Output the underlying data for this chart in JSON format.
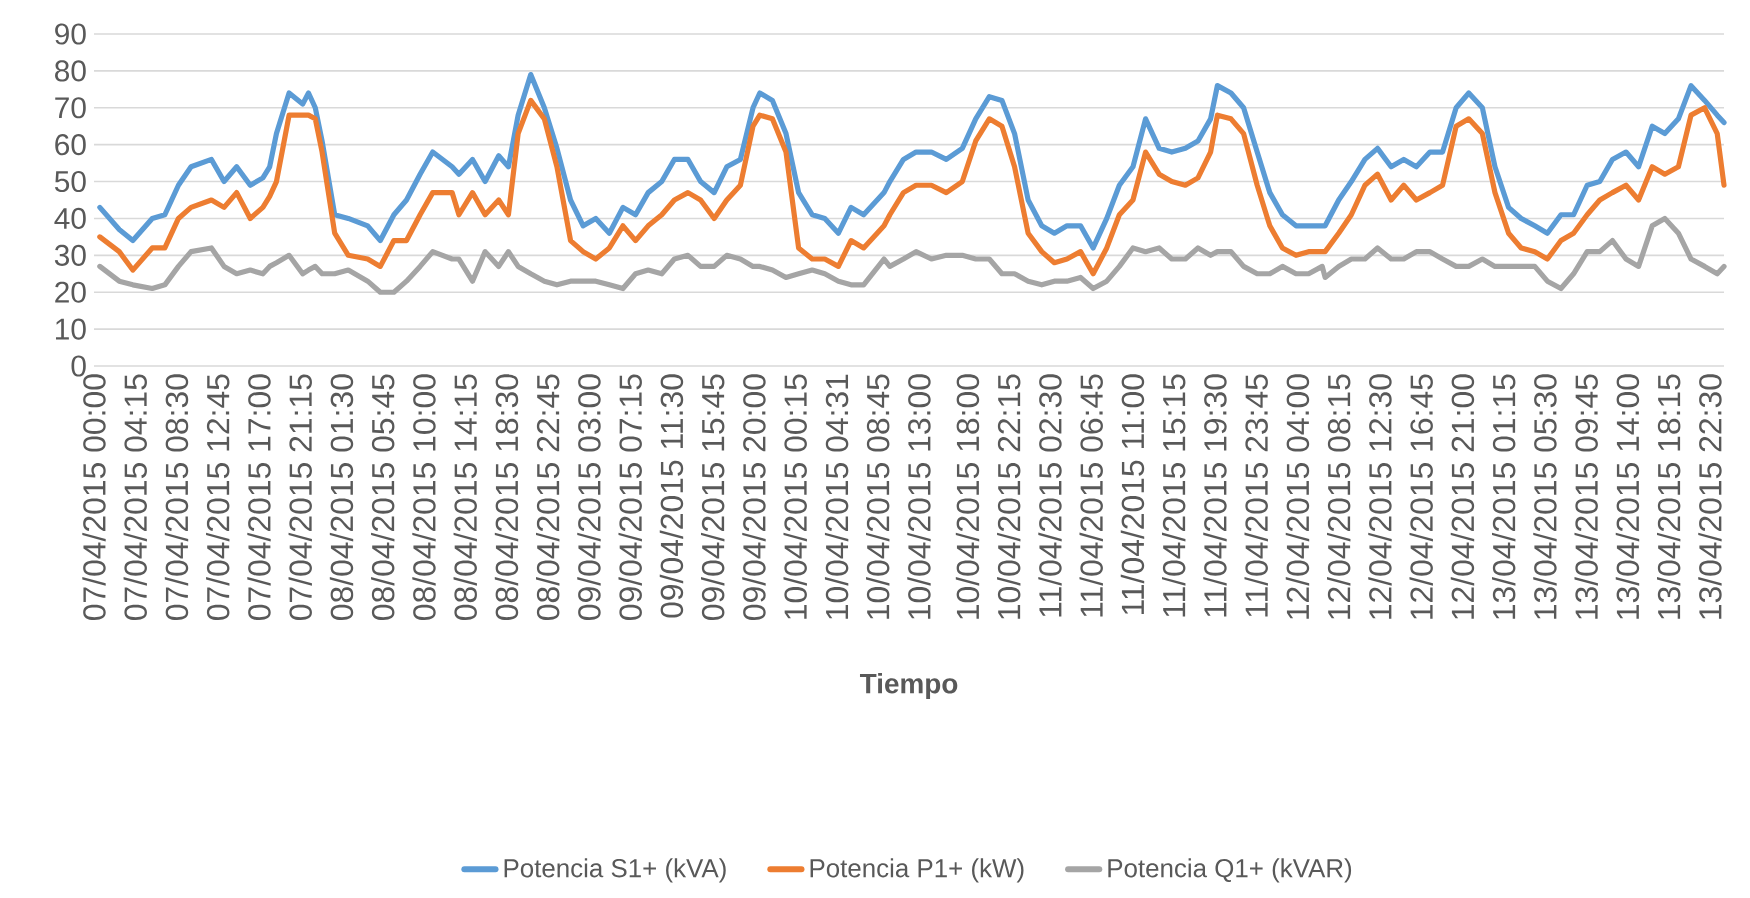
{
  "chart_data": {
    "type": "line",
    "xlabel": "Tiempo",
    "xlim": [
      "2015-04-07T00:00",
      "2015-04-13T23:57"
    ],
    "ylim": [
      0,
      90
    ],
    "yticks": [
      0,
      10,
      20,
      30,
      40,
      50,
      60,
      70,
      80,
      90
    ],
    "xticks": [
      {
        "value": "2015-04-07T00:00",
        "label": "07/04/2015 00:00"
      },
      {
        "value": "2015-04-07T04:15",
        "label": "07/04/2015 04:15"
      },
      {
        "value": "2015-04-07T08:30",
        "label": "07/04/2015 08:30"
      },
      {
        "value": "2015-04-07T12:45",
        "label": "07/04/2015 12:45"
      },
      {
        "value": "2015-04-07T17:00",
        "label": "07/04/2015 17:00"
      },
      {
        "value": "2015-04-07T21:15",
        "label": "07/04/2015 21:15"
      },
      {
        "value": "2015-04-08T01:30",
        "label": "08/04/2015 01:30"
      },
      {
        "value": "2015-04-08T05:45",
        "label": "08/04/2015 05:45"
      },
      {
        "value": "2015-04-08T10:00",
        "label": "08/04/2015 10:00"
      },
      {
        "value": "2015-04-08T14:15",
        "label": "08/04/2015 14:15"
      },
      {
        "value": "2015-04-08T18:30",
        "label": "08/04/2015 18:30"
      },
      {
        "value": "2015-04-08T22:45",
        "label": "08/04/2015 22:45"
      },
      {
        "value": "2015-04-09T03:00",
        "label": "09/04/2015 03:00"
      },
      {
        "value": "2015-04-09T07:15",
        "label": "09/04/2015 07:15"
      },
      {
        "value": "2015-04-09T11:30",
        "label": "09/04/2015 11:30"
      },
      {
        "value": "2015-04-09T15:45",
        "label": "09/04/2015 15:45"
      },
      {
        "value": "2015-04-09T20:00",
        "label": "09/04/2015 20:00"
      },
      {
        "value": "2015-04-10T00:15",
        "label": "10/04/2015 00:15"
      },
      {
        "value": "2015-04-10T04:31",
        "label": "10/04/2015 04:31"
      },
      {
        "value": "2015-04-10T08:45",
        "label": "10/04/2015 08:45"
      },
      {
        "value": "2015-04-10T13:00",
        "label": "10/04/2015 13:00"
      },
      {
        "value": "2015-04-10T18:00",
        "label": "10/04/2015 18:00"
      },
      {
        "value": "2015-04-10T22:15",
        "label": "10/04/2015 22:15"
      },
      {
        "value": "2015-04-11T02:30",
        "label": "11/04/2015 02:30"
      },
      {
        "value": "2015-04-11T06:45",
        "label": "11/04/2015 06:45"
      },
      {
        "value": "2015-04-11T11:00",
        "label": "11/04/2015 11:00"
      },
      {
        "value": "2015-04-11T15:15",
        "label": "11/04/2015 15:15"
      },
      {
        "value": "2015-04-11T19:30",
        "label": "11/04/2015 19:30"
      },
      {
        "value": "2015-04-11T23:45",
        "label": "11/04/2015 23:45"
      },
      {
        "value": "2015-04-12T04:00",
        "label": "12/04/2015 04:00"
      },
      {
        "value": "2015-04-12T08:15",
        "label": "12/04/2015 08:15"
      },
      {
        "value": "2015-04-12T12:30",
        "label": "12/04/2015 12:30"
      },
      {
        "value": "2015-04-12T16:45",
        "label": "12/04/2015 16:45"
      },
      {
        "value": "2015-04-12T21:00",
        "label": "12/04/2015 21:00"
      },
      {
        "value": "2015-04-13T01:15",
        "label": "13/04/2015 01:15"
      },
      {
        "value": "2015-04-13T05:30",
        "label": "13/04/2015 05:30"
      },
      {
        "value": "2015-04-13T09:45",
        "label": "13/04/2015 09:45"
      },
      {
        "value": "2015-04-13T14:00",
        "label": "13/04/2015 14:00"
      },
      {
        "value": "2015-04-13T18:15",
        "label": "13/04/2015 18:15"
      },
      {
        "value": "2015-04-13T22:30",
        "label": "13/04/2015 22:30"
      }
    ],
    "x": [
      "2015-04-07T00:36",
      "2015-04-07T02:36",
      "2015-04-07T04:00",
      "2015-04-07T06:00",
      "2015-04-07T07:18",
      "2015-04-07T08:42",
      "2015-04-07T10:00",
      "2015-04-07T12:06",
      "2015-04-07T13:24",
      "2015-04-07T14:42",
      "2015-04-07T16:06",
      "2015-04-07T17:24",
      "2015-04-07T18:06",
      "2015-04-07T18:48",
      "2015-04-07T20:06",
      "2015-04-07T21:30",
      "2015-04-07T22:06",
      "2015-04-07T22:48",
      "2015-04-07T23:30",
      "2015-04-08T00:48",
      "2015-04-08T02:12",
      "2015-04-08T04:12",
      "2015-04-08T05:30",
      "2015-04-08T06:54",
      "2015-04-08T08:12",
      "2015-04-08T09:36",
      "2015-04-08T10:54",
      "2015-04-08T12:54",
      "2015-04-08T13:36",
      "2015-04-08T15:00",
      "2015-04-08T16:18",
      "2015-04-08T17:42",
      "2015-04-08T18:42",
      "2015-04-08T19:42",
      "2015-04-08T21:00",
      "2015-04-08T22:24",
      "2015-04-08T23:42",
      "2015-04-09T01:06",
      "2015-04-09T02:24",
      "2015-04-09T03:42",
      "2015-04-09T05:06",
      "2015-04-09T06:30",
      "2015-04-09T07:48",
      "2015-04-09T09:06",
      "2015-04-09T10:30",
      "2015-04-09T11:48",
      "2015-04-09T13:12",
      "2015-04-09T14:30",
      "2015-04-09T15:54",
      "2015-04-09T17:12",
      "2015-04-09T18:36",
      "2015-04-09T19:54",
      "2015-04-09T20:36",
      "2015-04-09T21:54",
      "2015-04-09T23:18",
      "2015-04-10T00:36",
      "2015-04-10T02:00",
      "2015-04-10T03:18",
      "2015-04-10T04:42",
      "2015-04-10T06:00",
      "2015-04-10T07:18",
      "2015-04-10T09:24",
      "2015-04-10T10:00",
      "2015-04-10T11:24",
      "2015-04-10T12:42",
      "2015-04-10T14:17",
      "2015-04-10T15:49",
      "2015-04-10T17:28",
      "2015-04-10T18:51",
      "2015-04-10T20:15",
      "2015-04-10T21:33",
      "2015-04-10T22:51",
      "2015-04-11T00:15",
      "2015-04-11T01:39",
      "2015-04-11T02:57",
      "2015-04-11T04:15",
      "2015-04-11T05:39",
      "2015-04-11T06:57",
      "2015-04-11T08:21",
      "2015-04-11T09:39",
      "2015-04-11T11:03",
      "2015-04-11T12:21",
      "2015-04-11T13:45",
      "2015-04-11T15:03",
      "2015-04-11T16:27",
      "2015-04-11T17:45",
      "2015-04-11T19:03",
      "2015-04-11T19:45",
      "2015-04-11T21:09",
      "2015-04-11T22:27",
      "2015-04-11T23:51",
      "2015-04-12T01:09",
      "2015-04-12T02:27",
      "2015-04-12T03:51",
      "2015-04-12T05:09",
      "2015-04-12T06:33",
      "2015-04-12T06:51",
      "2015-04-12T08:15",
      "2015-04-12T09:33",
      "2015-04-12T10:57",
      "2015-04-12T12:15",
      "2015-04-12T13:39",
      "2015-04-12T14:57",
      "2015-04-12T16:15",
      "2015-04-12T17:39",
      "2015-04-12T18:57",
      "2015-04-12T20:21",
      "2015-04-12T21:39",
      "2015-04-12T23:03",
      "2015-04-13T00:21",
      "2015-04-13T01:45",
      "2015-04-13T03:03",
      "2015-04-13T04:27",
      "2015-04-13T05:45",
      "2015-04-13T07:09",
      "2015-04-13T08:27",
      "2015-04-13T09:51",
      "2015-04-13T11:09",
      "2015-04-13T12:27",
      "2015-04-13T13:51",
      "2015-04-13T15:09",
      "2015-04-13T16:33",
      "2015-04-13T17:51",
      "2015-04-13T19:15",
      "2015-04-13T20:33",
      "2015-04-13T21:57",
      "2015-04-13T23:15",
      "2015-04-13T23:57"
    ],
    "series": [
      {
        "name": "Potencia S1+ (kVA)",
        "color": "#5b9bd5",
        "values": [
          43,
          37,
          34,
          40,
          41,
          49,
          54,
          56,
          50,
          54,
          49,
          51,
          54,
          63,
          74,
          71,
          74,
          70,
          61,
          41,
          40,
          38,
          34,
          41,
          45,
          52,
          58,
          54,
          52,
          56,
          50,
          57,
          54,
          68,
          79,
          70,
          59,
          45,
          38,
          40,
          36,
          43,
          41,
          47,
          50,
          56,
          56,
          50,
          47,
          54,
          56,
          70,
          74,
          72,
          63,
          47,
          41,
          40,
          36,
          43,
          41,
          47,
          50,
          56,
          58,
          58,
          56,
          59,
          67,
          73,
          72,
          63,
          45,
          38,
          36,
          38,
          38,
          32,
          40,
          49,
          54,
          67,
          59,
          58,
          59,
          61,
          67,
          76,
          74,
          70,
          58,
          47,
          41,
          38,
          38,
          38,
          38,
          45,
          50,
          56,
          59,
          54,
          56,
          54,
          58,
          58,
          70,
          74,
          70,
          54,
          43,
          40,
          38,
          36,
          41,
          41,
          49,
          50,
          56,
          58,
          54,
          65,
          63,
          67,
          76,
          72,
          68,
          66
        ]
      },
      {
        "name": "Potencia P1+ (kW)",
        "color": "#ed7d31",
        "values": [
          35,
          31,
          26,
          32,
          32,
          40,
          43,
          45,
          43,
          47,
          40,
          43,
          46,
          50,
          68,
          68,
          68,
          67,
          58,
          36,
          30,
          29,
          27,
          34,
          34,
          41,
          47,
          47,
          41,
          47,
          41,
          45,
          41,
          63,
          72,
          67,
          54,
          34,
          31,
          29,
          32,
          38,
          34,
          38,
          41,
          45,
          47,
          45,
          40,
          45,
          49,
          65,
          68,
          67,
          58,
          32,
          29,
          29,
          27,
          34,
          32,
          38,
          41,
          47,
          49,
          49,
          47,
          50,
          61,
          67,
          65,
          54,
          36,
          31,
          28,
          29,
          31,
          25,
          32,
          41,
          45,
          58,
          52,
          50,
          49,
          51,
          58,
          68,
          67,
          63,
          49,
          38,
          32,
          30,
          31,
          31,
          31,
          36,
          41,
          49,
          52,
          45,
          49,
          45,
          47,
          49,
          65,
          67,
          63,
          47,
          36,
          32,
          31,
          29,
          34,
          36,
          41,
          45,
          47,
          49,
          45,
          54,
          52,
          54,
          68,
          70,
          63,
          49
        ]
      },
      {
        "name": "Potencia Q1+ (kVAR)",
        "color": "#a5a5a5",
        "values": [
          27,
          23,
          22,
          21,
          22,
          27,
          31,
          32,
          27,
          25,
          26,
          25,
          27,
          28,
          30,
          25,
          26,
          27,
          25,
          25,
          26,
          23,
          20,
          20,
          23,
          27,
          31,
          29,
          29,
          23,
          31,
          27,
          31,
          27,
          25,
          23,
          22,
          23,
          23,
          23,
          22,
          21,
          25,
          26,
          25,
          29,
          30,
          27,
          27,
          30,
          29,
          27,
          27,
          26,
          24,
          25,
          26,
          25,
          23,
          22,
          22,
          29,
          27,
          29,
          31,
          29,
          30,
          30,
          29,
          29,
          25,
          25,
          23,
          22,
          23,
          23,
          24,
          21,
          23,
          27,
          32,
          31,
          32,
          29,
          29,
          32,
          30,
          31,
          31,
          27,
          25,
          25,
          27,
          25,
          25,
          27,
          24,
          27,
          29,
          29,
          32,
          29,
          29,
          31,
          31,
          29,
          27,
          27,
          29,
          27,
          27,
          27,
          27,
          23,
          21,
          25,
          31,
          31,
          34,
          29,
          27,
          38,
          40,
          36,
          29,
          27,
          25,
          27
        ]
      }
    ],
    "grid": "y",
    "legend": "bottom",
    "marker": "none",
    "line_style": "solid"
  }
}
